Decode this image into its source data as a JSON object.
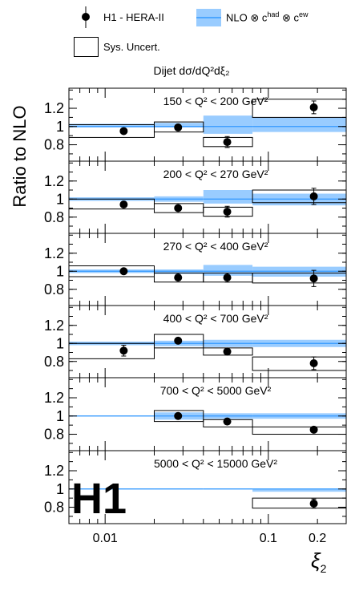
{
  "legend": {
    "data_label": "H1 - HERA-II",
    "nlo_label": "NLO ⊗ c",
    "nlo_sup1": "had",
    "nlo_mid": " ⊗ c",
    "nlo_sup2": "ew",
    "sys_label": "Sys. Uncert."
  },
  "subtitle": "Dijet dσ/dQ²dξ₂",
  "logo": "H1",
  "colors": {
    "nlo_band": "#99ccff",
    "nlo_line": "#3399ff",
    "marker": "#000000"
  },
  "chart_data": {
    "type": "scatter",
    "xlabel": "ξ2",
    "ylabel": "Ratio to NLO",
    "xscale": "log",
    "xlim": [
      0.006,
      0.3
    ],
    "ylim": [
      0.62,
      1.42
    ],
    "y_ticks": [
      "0.8",
      "1",
      "1.2"
    ],
    "y_tick_values": [
      0.8,
      1.0,
      1.2
    ],
    "x_ticks": [
      "0.01",
      "0.1",
      "0.2"
    ],
    "x_tick_values": [
      0.01,
      0.1,
      0.2
    ],
    "bin_edges": [
      0.006,
      0.02,
      0.04,
      0.08,
      0.3
    ],
    "panels": [
      {
        "title": "150 < Q² < 200 GeV²",
        "points": [
          {
            "x": 0.013,
            "y": 0.95,
            "err": 0.02
          },
          {
            "x": 0.028,
            "y": 0.99,
            "err": 0.03
          },
          {
            "x": 0.056,
            "y": 0.83,
            "err": 0.06
          },
          {
            "x": 0.19,
            "y": 1.21,
            "err": 0.07
          }
        ],
        "nlo": [
          [
            0.99,
            1.03
          ],
          [
            0.99,
            1.04
          ],
          [
            0.92,
            1.12
          ],
          [
            0.94,
            1.1
          ]
        ],
        "sys": [
          [
            0.88,
            1.02
          ],
          [
            0.94,
            1.05
          ],
          [
            0.78,
            0.88
          ],
          [
            1.1,
            1.3
          ]
        ]
      },
      {
        "title": "200 < Q² < 270 GeV²",
        "points": [
          {
            "x": 0.013,
            "y": 0.94,
            "err": 0.02
          },
          {
            "x": 0.028,
            "y": 0.9,
            "err": 0.03
          },
          {
            "x": 0.056,
            "y": 0.86,
            "err": 0.06
          },
          {
            "x": 0.19,
            "y": 1.03,
            "err": 0.09
          }
        ],
        "nlo": [
          [
            0.98,
            1.02
          ],
          [
            0.97,
            1.03
          ],
          [
            0.95,
            1.1
          ],
          [
            0.93,
            1.06
          ]
        ],
        "sys": [
          [
            0.89,
            1.0
          ],
          [
            0.85,
            0.95
          ],
          [
            0.81,
            0.91
          ],
          [
            0.96,
            1.1
          ]
        ]
      },
      {
        "title": "270 < Q² < 400 GeV²",
        "points": [
          {
            "x": 0.013,
            "y": 1.0,
            "err": 0.02
          },
          {
            "x": 0.028,
            "y": 0.93,
            "err": 0.03
          },
          {
            "x": 0.056,
            "y": 0.93,
            "err": 0.05
          },
          {
            "x": 0.19,
            "y": 0.92,
            "err": 0.09
          }
        ],
        "nlo": [
          [
            0.98,
            1.02
          ],
          [
            0.97,
            1.02
          ],
          [
            0.95,
            1.07
          ],
          [
            0.94,
            1.05
          ]
        ],
        "sys": [
          [
            0.94,
            1.06
          ],
          [
            0.88,
            0.98
          ],
          [
            0.88,
            0.98
          ],
          [
            0.87,
            0.98
          ]
        ]
      },
      {
        "title": "400 < Q² < 700 GeV²",
        "points": [
          {
            "x": 0.013,
            "y": 0.92,
            "err": 0.06
          },
          {
            "x": 0.028,
            "y": 1.03,
            "err": 0.03
          },
          {
            "x": 0.056,
            "y": 0.91,
            "err": 0.03
          },
          {
            "x": 0.19,
            "y": 0.78,
            "err": 0.07
          }
        ],
        "nlo": [
          [
            0.98,
            1.02
          ],
          [
            0.97,
            1.03
          ],
          [
            0.96,
            1.04
          ],
          [
            0.96,
            1.04
          ]
        ],
        "sys": [
          [
            0.83,
            1.0
          ],
          [
            0.95,
            1.1
          ],
          [
            0.87,
            0.95
          ],
          [
            0.7,
            0.85
          ]
        ]
      },
      {
        "title": "700 < Q² < 5000 GeV²",
        "points": [
          {
            "x": 0.028,
            "y": 1.0,
            "err": 0.02
          },
          {
            "x": 0.056,
            "y": 0.94,
            "err": 0.02
          },
          {
            "x": 0.19,
            "y": 0.85,
            "err": 0.03
          }
        ],
        "nlo": [
          [
            0.995,
            1.005
          ],
          [
            0.96,
            1.04
          ],
          [
            0.97,
            1.03
          ],
          [
            0.97,
            1.03
          ]
        ],
        "sys": [
          null,
          [
            0.94,
            1.06
          ],
          [
            0.88,
            0.96
          ],
          [
            0.8,
            0.88
          ]
        ]
      },
      {
        "title": "5000 < Q² < 15000 GeV²",
        "points": [
          {
            "x": 0.19,
            "y": 0.84,
            "err": 0.05
          }
        ],
        "nlo": [
          [
            0.995,
            1.005
          ],
          [
            0.995,
            1.005
          ],
          [
            0.995,
            1.005
          ],
          [
            0.97,
            1.0
          ]
        ],
        "sys": [
          null,
          null,
          null,
          [
            0.79,
            0.9
          ]
        ]
      }
    ]
  }
}
